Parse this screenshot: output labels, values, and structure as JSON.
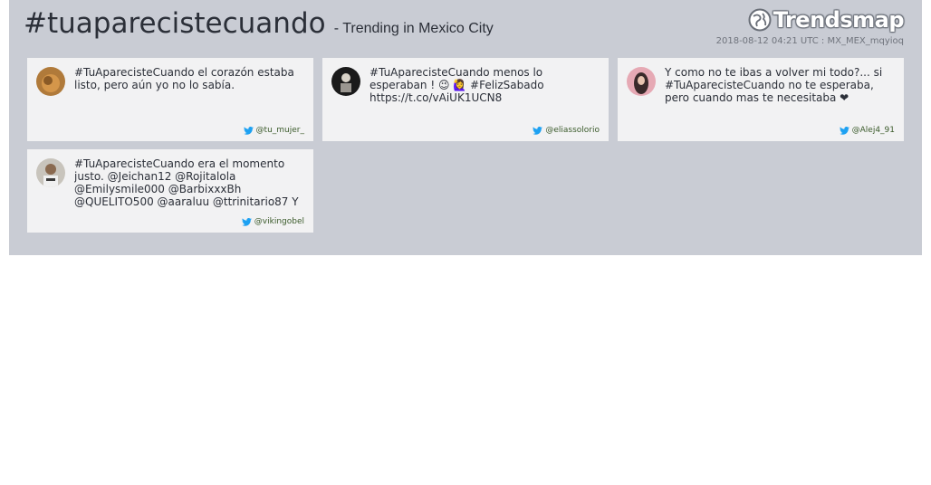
{
  "header": {
    "hashtag": "#tuaparecistecuando",
    "subtitle": "- Trending in Mexico City",
    "logo_text": "Trendsmap",
    "meta": "2018-08-12 04:21 UTC : MX_MEX_mqyioq"
  },
  "tweets": [
    {
      "text": "#TuAparecisteCuando el corazón estaba listo, pero aún yo no lo sabía.",
      "user": "@tu_mujer_"
    },
    {
      "text": "#TuAparecisteCuando menos lo esperaban ! 😉 🙋‍♀️ #FelizSabado https://t.co/vAiUK1UCN8",
      "user": "@eliassolorio"
    },
    {
      "text": "Y como no te ibas a volver mi todo?... si #TuAparecisteCuando no te esperaba, pero cuando mas te necesitaba ❤",
      "user": "@Alej4_91"
    },
    {
      "text": "#TuAparecisteCuando era el momento justo. @Jeichan12 @Rojitalola @Emilysmile000 @BarbixxxBh @QUELITO500 @aaraluu @ttrinitario87 Y",
      "user": "@vikingobel"
    }
  ],
  "colors": {
    "panel": "#c9ccd4",
    "card": "#f2f2f3",
    "twitter": "#1da1f2",
    "username": "#3a5a2a"
  }
}
